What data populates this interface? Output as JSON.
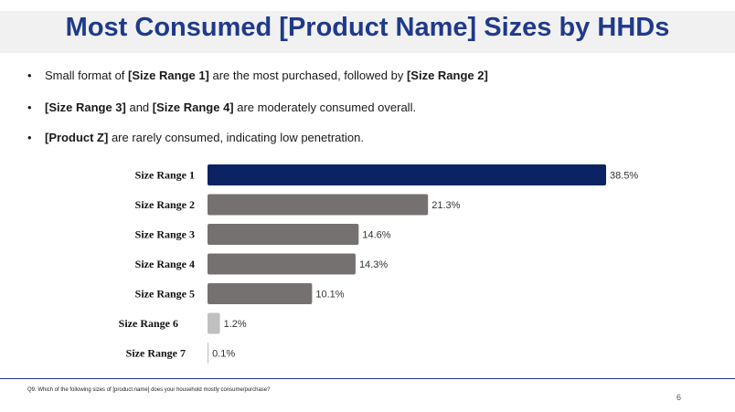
{
  "slide": {
    "title": "Most Consumed [Product Name] Sizes by HHDs",
    "bullets": [
      {
        "parts": [
          {
            "text": "Small format of ",
            "bold": false
          },
          {
            "text": "[Size Range 1]",
            "bold": true
          },
          {
            "text": " are the most purchased, followed by ",
            "bold": false
          },
          {
            "text": "[Size Range 2]",
            "bold": true
          }
        ]
      },
      {
        "parts": [
          {
            "text": "[Size Range 3]",
            "bold": true
          },
          {
            "text": " and ",
            "bold": false
          },
          {
            "text": "[Size Range 4]",
            "bold": true
          },
          {
            "text": " are moderately consumed overall.",
            "bold": false
          }
        ]
      },
      {
        "parts": [
          {
            "text": "[Product Z]",
            "bold": true
          },
          {
            "text": " are rarely consumed, indicating low penetration.",
            "bold": false
          }
        ]
      }
    ],
    "bullet_symbol": "•",
    "footnote": "Q9. Which of the following sizes of [product name] does your household mostly consume/purchase?",
    "page_number": "6"
  },
  "chart_data": {
    "type": "bar",
    "orientation": "horizontal",
    "categories": [
      "Size Range 1",
      "Size Range 2",
      "Size Range 3",
      "Size Range 4",
      "Size Range 5",
      "Size Range 6",
      "Size Range 7"
    ],
    "values": [
      38.5,
      21.3,
      14.6,
      14.3,
      10.1,
      1.2,
      0.1
    ],
    "value_labels": [
      "38.5%",
      "21.3%",
      "14.6%",
      "14.3%",
      "10.1%",
      "1.2%",
      "0.1%"
    ],
    "colors": [
      "#0b2263",
      "#767171",
      "#767171",
      "#767171",
      "#767171",
      "#c0c0c0",
      "#c0c0c0"
    ],
    "unit": "%",
    "grid": false
  }
}
